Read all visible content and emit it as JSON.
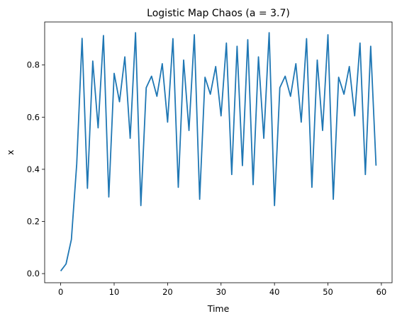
{
  "chart_data": {
    "type": "line",
    "title": "Logistic Map Chaos (a = 3.7)",
    "xlabel": "Time",
    "ylabel": "x",
    "xlim": [
      -3,
      62
    ],
    "ylim": [
      -0.035,
      0.965
    ],
    "xticks": [
      0,
      10,
      20,
      30,
      40,
      50,
      60
    ],
    "yticks": [
      0.0,
      0.2,
      0.4,
      0.6,
      0.8
    ],
    "xtick_labels": [
      "0",
      "10",
      "20",
      "30",
      "40",
      "50",
      "60"
    ],
    "ytick_labels": [
      "0.0",
      "0.2",
      "0.4",
      "0.6",
      "0.8"
    ],
    "grid": false,
    "legend": "none",
    "line_color": "#1f77b4",
    "series": [
      {
        "x": [
          0,
          1,
          2,
          3,
          4,
          5,
          6,
          7,
          8,
          9,
          10,
          11,
          12,
          13,
          14,
          15,
          16,
          17,
          18,
          19,
          20,
          21,
          22,
          23,
          24,
          25,
          26,
          27,
          28,
          29,
          30,
          31,
          32,
          33,
          34,
          35,
          36,
          37,
          38,
          39,
          40,
          41,
          42,
          43,
          44,
          45,
          46,
          47,
          48,
          49,
          50,
          51,
          52,
          53,
          54,
          55,
          56,
          57,
          58,
          59
        ],
        "values": [
          0.01,
          0.037,
          0.131,
          0.421,
          0.902,
          0.327,
          0.815,
          0.559,
          0.913,
          0.294,
          0.768,
          0.659,
          0.831,
          0.519,
          0.924,
          0.261,
          0.713,
          0.757,
          0.68,
          0.805,
          0.581,
          0.901,
          0.331,
          0.819,
          0.549,
          0.916,
          0.285,
          0.753,
          0.688,
          0.794,
          0.605,
          0.884,
          0.38,
          0.872,
          0.414,
          0.897,
          0.341,
          0.831,
          0.519,
          0.924,
          0.261,
          0.713,
          0.757,
          0.68,
          0.805,
          0.581,
          0.901,
          0.331,
          0.819,
          0.549,
          0.916,
          0.285,
          0.753,
          0.688,
          0.794,
          0.605,
          0.884,
          0.38,
          0.872,
          0.414
        ]
      }
    ]
  }
}
